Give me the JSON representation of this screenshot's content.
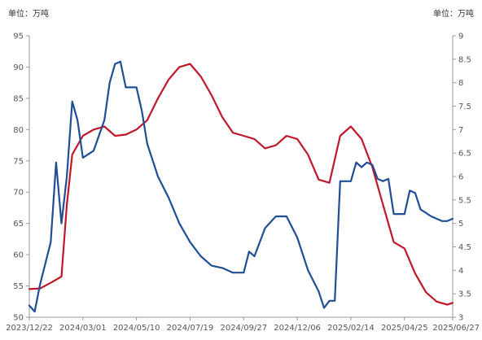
{
  "chart_data": {
    "type": "line",
    "left_unit_label": "单位：万吨",
    "right_unit_label": "单位：万吨",
    "x_tick_labels": [
      "2023/12/22",
      "2024/03/01",
      "2024/05/10",
      "2024/07/19",
      "2024/09/27",
      "2024/12/06",
      "2025/02/14",
      "2025/04/25",
      "2025/06/27"
    ],
    "y_left": {
      "ylim": [
        50,
        95
      ],
      "ticks": [
        50,
        55,
        60,
        65,
        70,
        75,
        80,
        85,
        90,
        95
      ]
    },
    "y_right": {
      "ylim": [
        3,
        9
      ],
      "ticks": [
        "3",
        "3.5",
        "4",
        "4.5",
        "5",
        "5.5",
        "6",
        "6.5",
        "7",
        "7.5",
        "8",
        "8.5",
        "9"
      ]
    },
    "grid": false,
    "legend": "none",
    "series": [
      {
        "axis": "left",
        "color": "#c0182a",
        "points": [
          [
            "2023/12/22",
            54.5
          ],
          [
            "2024/01/05",
            54.6
          ],
          [
            "2024/01/19",
            55.5
          ],
          [
            "2024/02/02",
            56.5
          ],
          [
            "2024/02/09",
            68.0
          ],
          [
            "2024/02/16",
            76.0
          ],
          [
            "2024/03/01",
            79.0
          ],
          [
            "2024/03/15",
            80.0
          ],
          [
            "2024/03/29",
            80.5
          ],
          [
            "2024/04/12",
            79.0
          ],
          [
            "2024/04/26",
            79.2
          ],
          [
            "2024/05/10",
            80.0
          ],
          [
            "2024/05/24",
            81.5
          ],
          [
            "2024/06/07",
            85.0
          ],
          [
            "2024/06/21",
            88.0
          ],
          [
            "2024/07/05",
            90.0
          ],
          [
            "2024/07/19",
            90.5
          ],
          [
            "2024/08/02",
            88.5
          ],
          [
            "2024/08/16",
            85.5
          ],
          [
            "2024/08/30",
            82.0
          ],
          [
            "2024/09/13",
            79.5
          ],
          [
            "2024/09/27",
            79.0
          ],
          [
            "2024/10/11",
            78.5
          ],
          [
            "2024/10/25",
            77.0
          ],
          [
            "2024/11/08",
            77.5
          ],
          [
            "2024/11/22",
            79.0
          ],
          [
            "2024/12/06",
            78.5
          ],
          [
            "2024/12/20",
            76.0
          ],
          [
            "2025/01/03",
            72.0
          ],
          [
            "2025/01/17",
            71.5
          ],
          [
            "2025/01/31",
            79.0
          ],
          [
            "2025/02/14",
            80.5
          ],
          [
            "2025/02/28",
            78.5
          ],
          [
            "2025/03/14",
            74.0
          ],
          [
            "2025/03/28",
            68.0
          ],
          [
            "2025/04/11",
            62.0
          ],
          [
            "2025/04/25",
            61.0
          ],
          [
            "2025/05/09",
            57.0
          ],
          [
            "2025/05/23",
            54.0
          ],
          [
            "2025/06/06",
            52.5
          ],
          [
            "2025/06/20",
            52.0
          ],
          [
            "2025/06/27",
            52.3
          ]
        ]
      },
      {
        "axis": "right",
        "color": "#1f4e96",
        "points": [
          [
            "2023/12/22",
            3.25
          ],
          [
            "2023/12/29",
            3.12
          ],
          [
            "2024/01/05",
            3.7
          ],
          [
            "2024/01/19",
            4.6
          ],
          [
            "2024/01/26",
            6.3
          ],
          [
            "2024/02/02",
            5.0
          ],
          [
            "2024/02/09",
            6.0
          ],
          [
            "2024/02/16",
            7.6
          ],
          [
            "2024/02/23",
            7.2
          ],
          [
            "2024/03/01",
            6.4
          ],
          [
            "2024/03/15",
            6.55
          ],
          [
            "2024/03/29",
            7.2
          ],
          [
            "2024/04/05",
            8.0
          ],
          [
            "2024/04/12",
            8.4
          ],
          [
            "2024/04/19",
            8.45
          ],
          [
            "2024/04/26",
            7.9
          ],
          [
            "2024/05/03",
            7.9
          ],
          [
            "2024/05/10",
            7.9
          ],
          [
            "2024/05/17",
            7.4
          ],
          [
            "2024/05/24",
            6.7
          ],
          [
            "2024/06/07",
            6.0
          ],
          [
            "2024/06/21",
            5.55
          ],
          [
            "2024/07/05",
            5.0
          ],
          [
            "2024/07/19",
            4.6
          ],
          [
            "2024/08/02",
            4.3
          ],
          [
            "2024/08/16",
            4.1
          ],
          [
            "2024/08/30",
            4.05
          ],
          [
            "2024/09/13",
            3.95
          ],
          [
            "2024/09/27",
            3.95
          ],
          [
            "2024/10/04",
            4.4
          ],
          [
            "2024/10/11",
            4.3
          ],
          [
            "2024/10/25",
            4.9
          ],
          [
            "2024/11/08",
            5.15
          ],
          [
            "2024/11/22",
            5.15
          ],
          [
            "2024/12/06",
            4.7
          ],
          [
            "2024/12/20",
            4.0
          ],
          [
            "2025/01/03",
            3.55
          ],
          [
            "2025/01/10",
            3.2
          ],
          [
            "2025/01/17",
            3.35
          ],
          [
            "2025/01/24",
            3.35
          ],
          [
            "2025/01/31",
            5.9
          ],
          [
            "2025/02/14",
            5.9
          ],
          [
            "2025/02/21",
            6.3
          ],
          [
            "2025/02/28",
            6.2
          ],
          [
            "2025/03/07",
            6.3
          ],
          [
            "2025/03/14",
            6.25
          ],
          [
            "2025/03/21",
            5.95
          ],
          [
            "2025/03/28",
            5.9
          ],
          [
            "2025/04/04",
            5.95
          ],
          [
            "2025/04/11",
            5.2
          ],
          [
            "2025/04/25",
            5.2
          ],
          [
            "2025/05/02",
            5.7
          ],
          [
            "2025/05/09",
            5.65
          ],
          [
            "2025/05/16",
            5.3
          ],
          [
            "2025/05/30",
            5.15
          ],
          [
            "2025/06/13",
            5.05
          ],
          [
            "2025/06/20",
            5.05
          ],
          [
            "2025/06/27",
            5.1
          ]
        ]
      }
    ]
  }
}
